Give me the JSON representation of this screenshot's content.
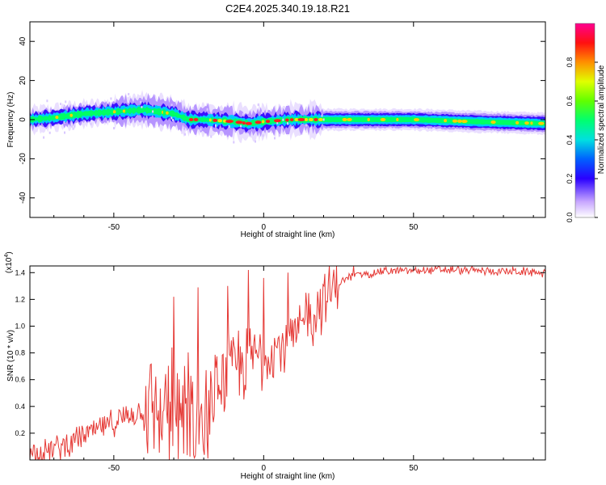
{
  "title": "C2E4.2025.340.19.18.R21",
  "chart_data": [
    {
      "type": "heatmap",
      "xlabel": "Height of straight line (km)",
      "ylabel": "Frequency (Hz)",
      "xlim": [
        -78,
        94
      ],
      "ylim": [
        -50,
        50
      ],
      "xticks": [
        -50,
        0,
        50
      ],
      "yticks": [
        -40,
        -20,
        0,
        20,
        40
      ],
      "band_center": [
        [
          -78,
          0
        ],
        [
          -70,
          1
        ],
        [
          -60,
          3
        ],
        [
          -50,
          4
        ],
        [
          -40,
          5
        ],
        [
          -30,
          3
        ],
        [
          -25,
          0
        ],
        [
          -20,
          0
        ],
        [
          -10,
          -1
        ],
        [
          -5,
          -2
        ],
        [
          0,
          -1
        ],
        [
          10,
          0
        ],
        [
          20,
          0
        ],
        [
          30,
          0
        ],
        [
          50,
          0
        ],
        [
          70,
          -1
        ],
        [
          94,
          -2
        ]
      ],
      "colorbar": {
        "label": "Normalized spectral amplitude",
        "range": [
          0,
          1
        ],
        "ticks": [
          0.0,
          0.2,
          0.4,
          0.6,
          0.8
        ]
      }
    },
    {
      "type": "line",
      "xlabel": "Height of straight line (km)",
      "ylabel": "SNR (10 * v/v)",
      "y_multiplier": "(x10",
      "y_multiplier_exp": "4",
      "y_multiplier_close": ")",
      "xlim": [
        -78,
        94
      ],
      "ylim": [
        0,
        1.45
      ],
      "xticks": [
        -50,
        0,
        50
      ],
      "yticks": [
        0.2,
        0.4,
        0.6,
        0.8,
        1.0,
        1.2,
        1.4
      ],
      "ytick_labels": [
        "0.2",
        "0.4",
        "0.6",
        "0.8",
        "1.0",
        "1.2",
        "1.4"
      ],
      "color": "#e53935",
      "trend": [
        [
          -78,
          0.05
        ],
        [
          -70,
          0.08
        ],
        [
          -60,
          0.18
        ],
        [
          -50,
          0.28
        ],
        [
          -40,
          0.38
        ],
        [
          -30,
          0.45
        ],
        [
          -25,
          0.45
        ],
        [
          -20,
          0.38
        ],
        [
          -15,
          0.55
        ],
        [
          -10,
          0.68
        ],
        [
          -5,
          0.75
        ],
        [
          0,
          0.8
        ],
        [
          5,
          0.85
        ],
        [
          10,
          0.9
        ],
        [
          15,
          1.05
        ],
        [
          20,
          1.2
        ],
        [
          25,
          1.32
        ],
        [
          30,
          1.38
        ],
        [
          40,
          1.41
        ],
        [
          60,
          1.42
        ],
        [
          80,
          1.41
        ],
        [
          94,
          1.4
        ]
      ],
      "spikes": [
        [
          -30,
          1.22
        ],
        [
          -22,
          1.29
        ],
        [
          -12,
          1.3
        ],
        [
          -5,
          1.42
        ],
        [
          0,
          1.36
        ],
        [
          8,
          1.4
        ],
        [
          14,
          1.25
        ],
        [
          20,
          1.3
        ],
        [
          30,
          1.45
        ]
      ]
    }
  ]
}
